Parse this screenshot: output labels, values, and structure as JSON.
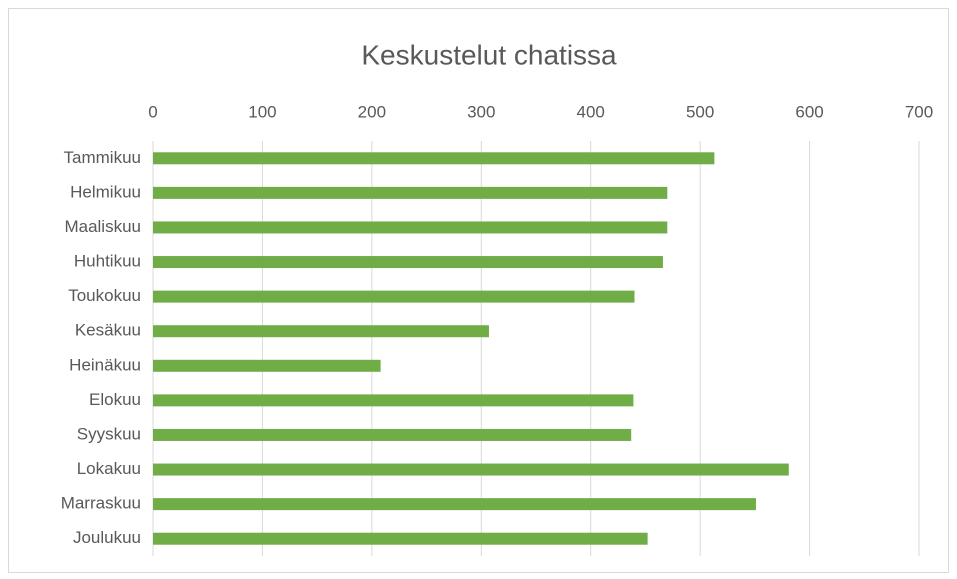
{
  "chart_data": {
    "type": "bar",
    "orientation": "horizontal",
    "title": "Keskustelut chatissa",
    "categories": [
      "Tammikuu",
      "Helmikuu",
      "Maaliskuu",
      "Huhtikuu",
      "Toukokuu",
      "Kesäkuu",
      "Heinäkuu",
      "Elokuu",
      "Syyskuu",
      "Lokakuu",
      "Marraskuu",
      "Joulukuu"
    ],
    "values": [
      513,
      470,
      470,
      466,
      440,
      307,
      208,
      439,
      437,
      581,
      551,
      452
    ],
    "color": "#70ad47",
    "xlim": [
      0,
      700
    ],
    "xticks": [
      0,
      100,
      200,
      300,
      400,
      500,
      600,
      700
    ],
    "grid": true
  }
}
